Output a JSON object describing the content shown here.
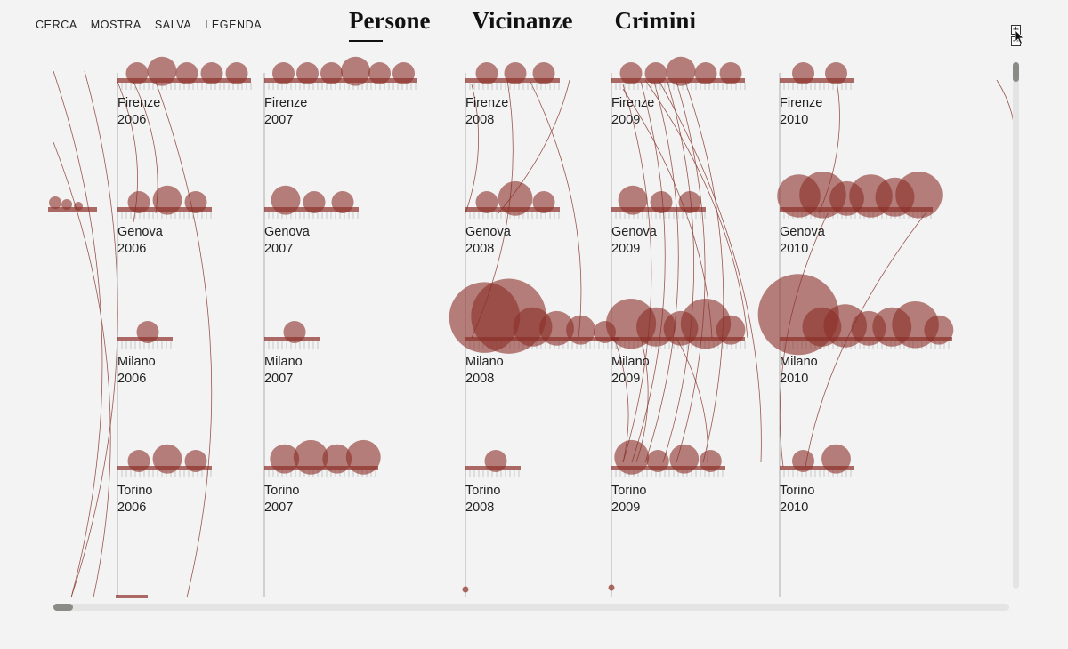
{
  "menu": [
    {
      "key": "search",
      "label": "CERCA"
    },
    {
      "key": "show",
      "label": "MOSTRA"
    },
    {
      "key": "save",
      "label": "SALVA"
    },
    {
      "key": "legend",
      "label": "LEGENDA"
    }
  ],
  "tabs": [
    {
      "label": "Persone",
      "active": true
    },
    {
      "label": "Vicinanze",
      "active": false
    },
    {
      "label": "Crimini",
      "active": false
    }
  ],
  "zoom": {
    "plus": "+",
    "minus": "−"
  },
  "colors": {
    "bubble": "#8b2e28",
    "link": "#8b3a32",
    "axis": "#9a9a9a",
    "background": "#f2f3f2"
  },
  "cities": [
    "Firenze",
    "Genova",
    "Milano",
    "Torino"
  ],
  "years": [
    "2006",
    "2007",
    "2008",
    "2009",
    "2010"
  ],
  "chart_data": {
    "type": "scatter",
    "rows": "city",
    "columns": "year",
    "cells": [
      {
        "city": "Firenze",
        "year": "2006",
        "bubbles": [
          1,
          2,
          1,
          1,
          1
        ]
      },
      {
        "city": "Firenze",
        "year": "2007",
        "bubbles": [
          1,
          1,
          1,
          2,
          1,
          1
        ]
      },
      {
        "city": "Firenze",
        "year": "2008",
        "bubbles": [
          1,
          1,
          1
        ]
      },
      {
        "city": "Firenze",
        "year": "2009",
        "bubbles": [
          1,
          1,
          2,
          1,
          1
        ]
      },
      {
        "city": "Firenze",
        "year": "2010",
        "bubbles": [
          1,
          1
        ]
      },
      {
        "city": "Genova",
        "year": "2006",
        "bubbles": [
          1,
          2,
          1
        ]
      },
      {
        "city": "Genova",
        "year": "2007",
        "bubbles": [
          2,
          1,
          1
        ]
      },
      {
        "city": "Genova",
        "year": "2008",
        "bubbles": [
          1,
          3,
          1
        ]
      },
      {
        "city": "Genova",
        "year": "2009",
        "bubbles": [
          2,
          1,
          1
        ]
      },
      {
        "city": "Genova",
        "year": "2010",
        "bubbles": [
          5,
          6,
          3,
          5,
          4,
          6
        ]
      },
      {
        "city": "Milano",
        "year": "2006",
        "bubbles": [
          1
        ]
      },
      {
        "city": "Milano",
        "year": "2007",
        "bubbles": [
          1
        ]
      },
      {
        "city": "Milano",
        "year": "2008",
        "bubbles": [
          15,
          17,
          4,
          3,
          2,
          1
        ]
      },
      {
        "city": "Milano",
        "year": "2009",
        "bubbles": [
          7,
          4,
          3,
          7,
          2
        ]
      },
      {
        "city": "Milano",
        "year": "2010",
        "bubbles": [
          20,
          4,
          5,
          3,
          4,
          6,
          2
        ]
      },
      {
        "city": "Torino",
        "year": "2006",
        "bubbles": [
          1,
          2,
          1
        ]
      },
      {
        "city": "Torino",
        "year": "2007",
        "bubbles": [
          2,
          3,
          2,
          3
        ]
      },
      {
        "city": "Torino",
        "year": "2008",
        "bubbles": [
          1
        ]
      },
      {
        "city": "Torino",
        "year": "2009",
        "bubbles": [
          3,
          1,
          2,
          1
        ]
      },
      {
        "city": "Torino",
        "year": "2010",
        "bubbles": [
          1,
          2
        ]
      }
    ]
  }
}
